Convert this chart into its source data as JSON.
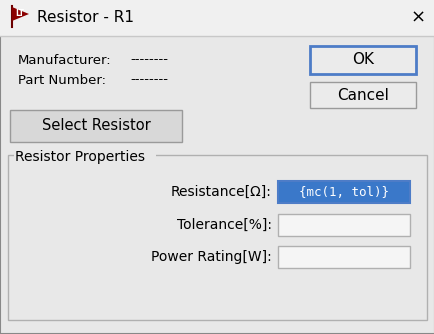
{
  "title": "Resistor - R1",
  "dialog_bg": "#e8e8e8",
  "title_bar_bg": "#f0f0f0",
  "manufacturer_label": "Manufacturer:",
  "manufacturer_value": "--------",
  "part_number_label": "Part Number:",
  "part_number_value": "--------",
  "select_btn": "Select Resistor",
  "section_label": "Resistor Properties",
  "fields": [
    {
      "label": "Resistance[Ω]:",
      "value": "{mc(1, tol)}",
      "highlighted": true
    },
    {
      "label": "Tolerance[%]:",
      "value": "",
      "highlighted": false
    },
    {
      "label": "Power Rating[W]:",
      "value": "",
      "highlighted": false
    }
  ],
  "ok_btn": "OK",
  "cancel_btn": "Cancel",
  "ok_border_color": "#4d7cc7",
  "input_highlight_bg": "#3a78c9",
  "input_highlight_fg": "#ffffff",
  "input_bg": "#f5f5f5",
  "input_border": "#b0b0b0",
  "btn_bg": "#ebebeb",
  "btn_border": "#9a9a9a",
  "logo_color": "#8b0000",
  "separator_color": "#c8c8c8"
}
